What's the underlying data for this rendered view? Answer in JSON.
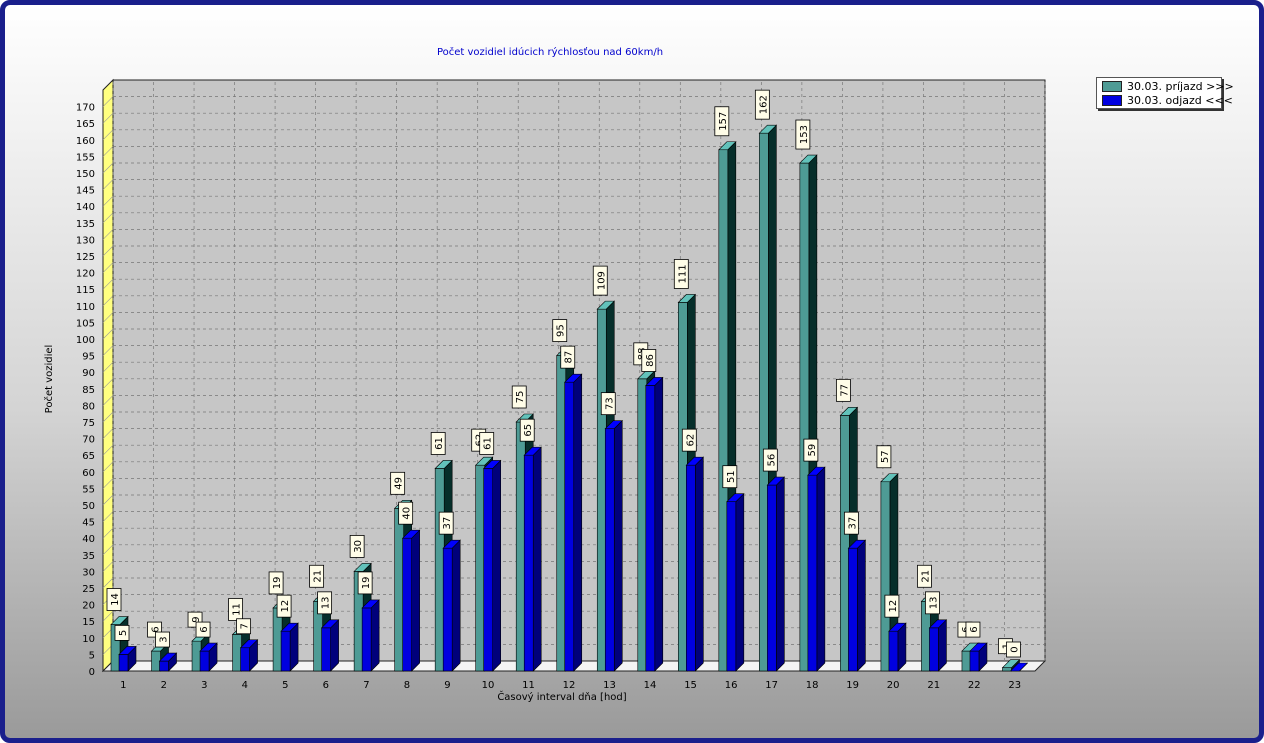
{
  "chart_data": {
    "type": "bar",
    "title": "Počet vozidiel idúcich rýchlosťou nad 60km/h",
    "xlabel": "Časový interval dňa [hod]",
    "ylabel": "Počet vozidiel",
    "ylim": [
      0,
      175
    ],
    "ytick_step": 5,
    "grid": true,
    "legend_position": "top-right",
    "categories": [
      "1",
      "2",
      "3",
      "4",
      "5",
      "6",
      "7",
      "8",
      "9",
      "10",
      "11",
      "12",
      "13",
      "14",
      "15",
      "16",
      "17",
      "18",
      "19",
      "20",
      "21",
      "22",
      "23"
    ],
    "series": [
      {
        "name": "30.03.  príjazd >>>",
        "color": "#4e9b95",
        "values": [
          14,
          6,
          9,
          11,
          19,
          21,
          30,
          49,
          61,
          62,
          75,
          95,
          109,
          88,
          111,
          157,
          162,
          153,
          77,
          57,
          21,
          6,
          1
        ]
      },
      {
        "name": "30.03.  odjazd <<<",
        "color": "#0000e0",
        "values": [
          5,
          3,
          6,
          7,
          12,
          13,
          19,
          40,
          37,
          61,
          65,
          87,
          73,
          86,
          62,
          51,
          56,
          59,
          37,
          12,
          13,
          6,
          0
        ]
      }
    ]
  }
}
